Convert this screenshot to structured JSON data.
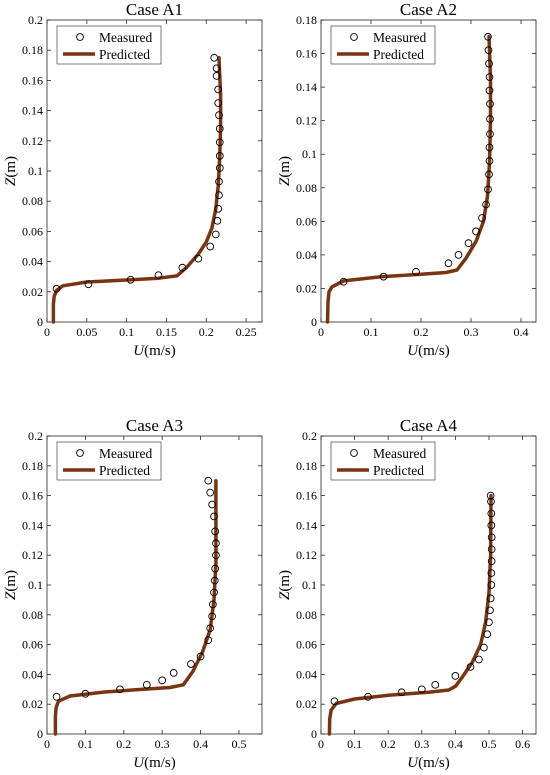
{
  "chart_data": [
    {
      "type": "line",
      "title": "Case A1",
      "xlabel_var": "U",
      "xlabel_unit": "(m/s)",
      "ylabel_var": "Z",
      "ylabel_unit": "(m)",
      "xlim": [
        0,
        0.27
      ],
      "ylim": [
        0,
        0.2
      ],
      "xticks": [
        "0",
        "0.05",
        "0.1",
        "0.15",
        "0.2",
        "0.25"
      ],
      "xtick_values": [
        0,
        0.05,
        0.1,
        0.15,
        0.2,
        0.25
      ],
      "yticks": [
        "0",
        "0.02",
        "0.04",
        "0.06",
        "0.08",
        "0.1",
        "0.12",
        "0.14",
        "0.16",
        "0.18",
        "0.2"
      ],
      "ytick_values": [
        0,
        0.02,
        0.04,
        0.06,
        0.08,
        0.1,
        0.12,
        0.14,
        0.16,
        0.18,
        0.2
      ],
      "legend": {
        "placement": "top-left",
        "entries": [
          "Measured",
          "Predicted"
        ]
      },
      "series": [
        {
          "name": "Measured",
          "kind": "scatter",
          "points": [
            [
              0.012,
              0.022
            ],
            [
              0.052,
              0.025
            ],
            [
              0.105,
              0.028
            ],
            [
              0.14,
              0.031
            ],
            [
              0.17,
              0.036
            ],
            [
              0.19,
              0.042
            ],
            [
              0.205,
              0.05
            ],
            [
              0.212,
              0.058
            ],
            [
              0.214,
              0.067
            ],
            [
              0.215,
              0.075
            ],
            [
              0.216,
              0.084
            ],
            [
              0.216,
              0.093
            ],
            [
              0.217,
              0.102
            ],
            [
              0.217,
              0.11
            ],
            [
              0.217,
              0.119
            ],
            [
              0.217,
              0.128
            ],
            [
              0.216,
              0.137
            ],
            [
              0.215,
              0.145
            ],
            [
              0.215,
              0.154
            ],
            [
              0.213,
              0.163
            ],
            [
              0.213,
              0.168
            ],
            [
              0.21,
              0.175
            ]
          ]
        },
        {
          "name": "Predicted",
          "kind": "line",
          "color": "#7B3410",
          "points": [
            [
              0.008,
              0.0
            ],
            [
              0.008,
              0.012
            ],
            [
              0.009,
              0.017
            ],
            [
              0.012,
              0.021
            ],
            [
              0.02,
              0.024
            ],
            [
              0.05,
              0.0265
            ],
            [
              0.1,
              0.0278
            ],
            [
              0.14,
              0.029
            ],
            [
              0.163,
              0.0305
            ],
            [
              0.175,
              0.036
            ],
            [
              0.19,
              0.045
            ],
            [
              0.2,
              0.053
            ],
            [
              0.207,
              0.062
            ],
            [
              0.212,
              0.075
            ],
            [
              0.215,
              0.09
            ],
            [
              0.217,
              0.11
            ],
            [
              0.218,
              0.13
            ],
            [
              0.218,
              0.15
            ],
            [
              0.216,
              0.175
            ]
          ]
        }
      ]
    },
    {
      "type": "line",
      "title": "Case A2",
      "xlabel_var": "U",
      "xlabel_unit": "(m/s)",
      "ylabel_var": "Z",
      "ylabel_unit": "(m)",
      "xlim": [
        0,
        0.43
      ],
      "ylim": [
        0,
        0.18
      ],
      "xticks": [
        "0",
        "0.1",
        "0.2",
        "0.3",
        "0.4"
      ],
      "xtick_values": [
        0,
        0.1,
        0.2,
        0.3,
        0.4
      ],
      "yticks": [
        "0",
        "0.02",
        "0.04",
        "0.06",
        "0.08",
        "0.1",
        "0.12",
        "0.14",
        "0.16",
        "0.18"
      ],
      "ytick_values": [
        0,
        0.02,
        0.04,
        0.06,
        0.08,
        0.1,
        0.12,
        0.14,
        0.16,
        0.18
      ],
      "legend": {
        "placement": "top-left",
        "entries": [
          "Measured",
          "Predicted"
        ]
      },
      "series": [
        {
          "name": "Measured",
          "kind": "scatter",
          "points": [
            [
              0.045,
              0.024
            ],
            [
              0.125,
              0.027
            ],
            [
              0.19,
              0.03
            ],
            [
              0.255,
              0.035
            ],
            [
              0.275,
              0.04
            ],
            [
              0.295,
              0.047
            ],
            [
              0.31,
              0.054
            ],
            [
              0.322,
              0.062
            ],
            [
              0.33,
              0.07
            ],
            [
              0.334,
              0.079
            ],
            [
              0.336,
              0.088
            ],
            [
              0.337,
              0.096
            ],
            [
              0.337,
              0.104
            ],
            [
              0.338,
              0.112
            ],
            [
              0.338,
              0.121
            ],
            [
              0.338,
              0.13
            ],
            [
              0.337,
              0.138
            ],
            [
              0.337,
              0.146
            ],
            [
              0.336,
              0.154
            ],
            [
              0.335,
              0.162
            ],
            [
              0.334,
              0.17
            ]
          ]
        },
        {
          "name": "Predicted",
          "kind": "line",
          "color": "#7B3410",
          "points": [
            [
              0.013,
              0.0
            ],
            [
              0.014,
              0.012
            ],
            [
              0.016,
              0.018
            ],
            [
              0.022,
              0.021
            ],
            [
              0.045,
              0.0245
            ],
            [
              0.12,
              0.027
            ],
            [
              0.2,
              0.0285
            ],
            [
              0.25,
              0.0295
            ],
            [
              0.272,
              0.031
            ],
            [
              0.29,
              0.038
            ],
            [
              0.31,
              0.048
            ],
            [
              0.325,
              0.06
            ],
            [
              0.333,
              0.075
            ],
            [
              0.337,
              0.095
            ],
            [
              0.339,
              0.12
            ],
            [
              0.339,
              0.145
            ],
            [
              0.336,
              0.17
            ]
          ]
        }
      ]
    },
    {
      "type": "line",
      "title": "Case A3",
      "xlabel_var": "U",
      "xlabel_unit": "(m/s)",
      "ylabel_var": "Z",
      "ylabel_unit": "(m)",
      "xlim": [
        0,
        0.56
      ],
      "ylim": [
        0,
        0.2
      ],
      "xticks": [
        "0",
        "0.1",
        "0.2",
        "0.3",
        "0.4",
        "0.5"
      ],
      "xtick_values": [
        0,
        0.1,
        0.2,
        0.3,
        0.4,
        0.5
      ],
      "yticks": [
        "0",
        "0.02",
        "0.04",
        "0.06",
        "0.08",
        "0.1",
        "0.12",
        "0.14",
        "0.16",
        "0.18",
        "0.2"
      ],
      "ytick_values": [
        0,
        0.02,
        0.04,
        0.06,
        0.08,
        0.1,
        0.12,
        0.14,
        0.16,
        0.18,
        0.2
      ],
      "legend": {
        "placement": "top-left",
        "entries": [
          "Measured",
          "Predicted"
        ]
      },
      "series": [
        {
          "name": "Measured",
          "kind": "scatter",
          "points": [
            [
              0.025,
              0.025
            ],
            [
              0.1,
              0.027
            ],
            [
              0.19,
              0.03
            ],
            [
              0.26,
              0.033
            ],
            [
              0.3,
              0.036
            ],
            [
              0.33,
              0.041
            ],
            [
              0.375,
              0.047
            ],
            [
              0.4,
              0.052
            ],
            [
              0.42,
              0.063
            ],
            [
              0.425,
              0.071
            ],
            [
              0.43,
              0.079
            ],
            [
              0.432,
              0.087
            ],
            [
              0.435,
              0.095
            ],
            [
              0.437,
              0.103
            ],
            [
              0.438,
              0.111
            ],
            [
              0.44,
              0.12
            ],
            [
              0.44,
              0.128
            ],
            [
              0.438,
              0.136
            ],
            [
              0.435,
              0.146
            ],
            [
              0.43,
              0.154
            ],
            [
              0.425,
              0.162
            ],
            [
              0.42,
              0.17
            ]
          ]
        },
        {
          "name": "Predicted",
          "kind": "line",
          "color": "#7B3410",
          "points": [
            [
              0.022,
              0.0
            ],
            [
              0.022,
              0.012
            ],
            [
              0.024,
              0.018
            ],
            [
              0.03,
              0.022
            ],
            [
              0.06,
              0.0255
            ],
            [
              0.15,
              0.0282
            ],
            [
              0.25,
              0.03
            ],
            [
              0.32,
              0.0312
            ],
            [
              0.355,
              0.033
            ],
            [
              0.38,
              0.042
            ],
            [
              0.405,
              0.055
            ],
            [
              0.425,
              0.07
            ],
            [
              0.435,
              0.09
            ],
            [
              0.44,
              0.115
            ],
            [
              0.44,
              0.14
            ],
            [
              0.44,
              0.17
            ]
          ]
        }
      ]
    },
    {
      "type": "line",
      "title": "Case A4",
      "xlabel_var": "U",
      "xlabel_unit": "(m/s)",
      "ylabel_var": "Z",
      "ylabel_unit": "(m)",
      "xlim": [
        0,
        0.64
      ],
      "ylim": [
        0,
        0.2
      ],
      "xticks": [
        "0",
        "0.1",
        "0.2",
        "0.3",
        "0.4",
        "0.5",
        "0.6"
      ],
      "xtick_values": [
        0,
        0.1,
        0.2,
        0.3,
        0.4,
        0.5,
        0.6
      ],
      "yticks": [
        "0",
        "0.02",
        "0.04",
        "0.06",
        "0.08",
        "0.1",
        "0.12",
        "0.14",
        "0.16",
        "0.18",
        "0.2"
      ],
      "ytick_values": [
        0,
        0.02,
        0.04,
        0.06,
        0.08,
        0.1,
        0.12,
        0.14,
        0.16,
        0.18,
        0.2
      ],
      "legend": {
        "placement": "top-left",
        "entries": [
          "Measured",
          "Predicted"
        ]
      },
      "series": [
        {
          "name": "Measured",
          "kind": "scatter",
          "points": [
            [
              0.04,
              0.022
            ],
            [
              0.14,
              0.025
            ],
            [
              0.24,
              0.028
            ],
            [
              0.3,
              0.03
            ],
            [
              0.34,
              0.033
            ],
            [
              0.4,
              0.039
            ],
            [
              0.445,
              0.045
            ],
            [
              0.47,
              0.05
            ],
            [
              0.485,
              0.058
            ],
            [
              0.495,
              0.067
            ],
            [
              0.5,
              0.075
            ],
            [
              0.503,
              0.083
            ],
            [
              0.505,
              0.091
            ],
            [
              0.507,
              0.1
            ],
            [
              0.507,
              0.108
            ],
            [
              0.508,
              0.116
            ],
            [
              0.508,
              0.124
            ],
            [
              0.508,
              0.132
            ],
            [
              0.507,
              0.14
            ],
            [
              0.507,
              0.148
            ],
            [
              0.506,
              0.156
            ],
            [
              0.505,
              0.16
            ]
          ]
        },
        {
          "name": "Predicted",
          "kind": "line",
          "color": "#7B3410",
          "points": [
            [
              0.025,
              0.0
            ],
            [
              0.026,
              0.01
            ],
            [
              0.03,
              0.016
            ],
            [
              0.045,
              0.0205
            ],
            [
              0.1,
              0.0235
            ],
            [
              0.2,
              0.026
            ],
            [
              0.32,
              0.028
            ],
            [
              0.38,
              0.0295
            ],
            [
              0.4,
              0.032
            ],
            [
              0.42,
              0.038
            ],
            [
              0.45,
              0.048
            ],
            [
              0.475,
              0.06
            ],
            [
              0.49,
              0.075
            ],
            [
              0.5,
              0.095
            ],
            [
              0.505,
              0.12
            ],
            [
              0.506,
              0.16
            ]
          ]
        }
      ]
    }
  ]
}
